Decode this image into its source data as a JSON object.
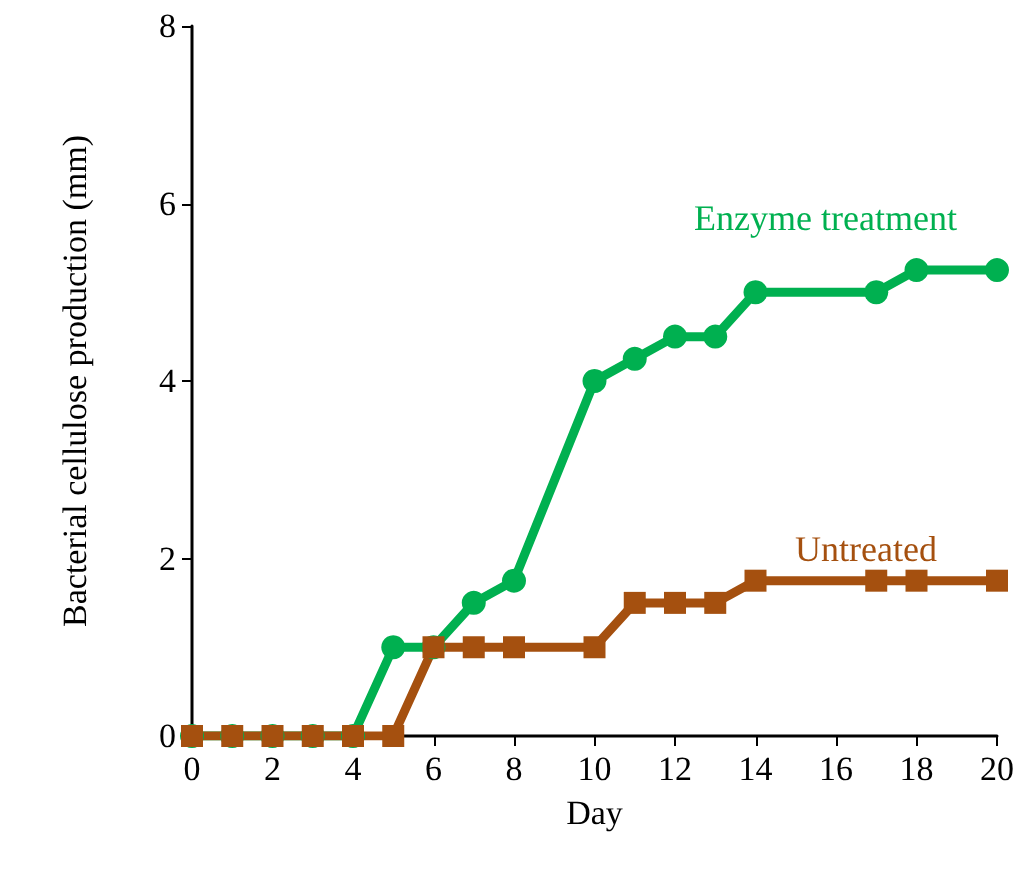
{
  "chart_data": {
    "type": "line",
    "xlabel": "Day",
    "ylabel": "Bacterial cellulose production (mm)",
    "xlim": [
      0,
      20
    ],
    "xticks": [
      0,
      2,
      4,
      6,
      8,
      10,
      12,
      14,
      16,
      18,
      20
    ],
    "ylim": [
      0,
      8
    ],
    "yticks": [
      0,
      2,
      4,
      6,
      8
    ],
    "grid": false,
    "legend": false,
    "line_style": "solid",
    "series": [
      {
        "name": "Enzyme treatment",
        "color": "#00b050",
        "marker": "circle",
        "x": [
          0,
          1,
          2,
          3,
          4,
          5,
          6,
          7,
          8,
          10,
          11,
          12,
          13,
          14,
          17,
          18,
          20
        ],
        "values": [
          0,
          0,
          0,
          0,
          0,
          1,
          1,
          1.5,
          1.75,
          4,
          4.25,
          4.5,
          4.5,
          5,
          5,
          5.25,
          5.25
        ]
      },
      {
        "name": "Untreated",
        "color": "#a5500f",
        "marker": "square",
        "x": [
          0,
          1,
          2,
          3,
          4,
          5,
          6,
          7,
          8,
          10,
          11,
          12,
          13,
          14,
          17,
          18,
          20
        ],
        "values": [
          0,
          0,
          0,
          0,
          0,
          0,
          1,
          1,
          1,
          1,
          1.5,
          1.5,
          1.5,
          1.75,
          1.75,
          1.75,
          1.75
        ]
      }
    ]
  }
}
